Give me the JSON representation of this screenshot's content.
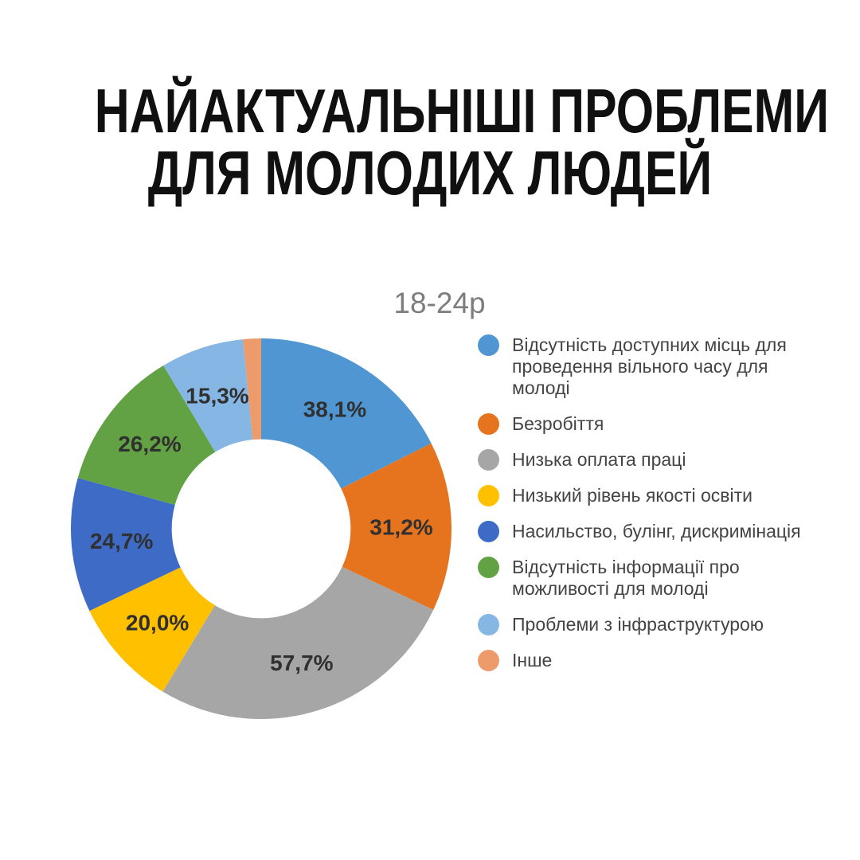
{
  "header": {
    "title_line1": "НАЙАКТУАЛЬНІШІ ПРОБЛЕМИ",
    "title_line2": "ДЛЯ МОЛОДИХ ЛЮДЕЙ"
  },
  "chart_data": {
    "type": "pie",
    "subtype": "donut",
    "title": "18-24р",
    "title_color": "#7d7d7d",
    "legend_position": "right",
    "start_angle_deg": 0,
    "direction": "clockwise",
    "inner_radius_ratio": 0.47,
    "data_label_color": "#303030",
    "series": [
      {
        "label": "Відсутність доступних місць для проведення вільного часу для молоді",
        "value": 38.1,
        "display_label": "38,1%",
        "color": "#4F96D2"
      },
      {
        "label": "Безробіття",
        "value": 31.2,
        "display_label": "31,2%",
        "color": "#E6741E"
      },
      {
        "label": "Низька оплата праці",
        "value": 57.7,
        "display_label": "57,7%",
        "color": "#A6A6A6"
      },
      {
        "label": "Низький рівень якості освіти",
        "value": 20.0,
        "display_label": "20,0%",
        "color": "#FFC000"
      },
      {
        "label": "Насильство, булінг, дискримінація",
        "value": 24.7,
        "display_label": "24,7%",
        "color": "#3D6BC6"
      },
      {
        "label": "Відсутність інформації про можливості для молоді",
        "value": 26.2,
        "display_label": "26,2%",
        "color": "#62A244"
      },
      {
        "label": "Проблеми з інфраструктурою",
        "value": 15.3,
        "display_label": "15,3%",
        "color": "#86B6E4"
      },
      {
        "label": "Інше",
        "value": 3.3,
        "display_label": "",
        "color": "#EE9B6C"
      }
    ]
  }
}
